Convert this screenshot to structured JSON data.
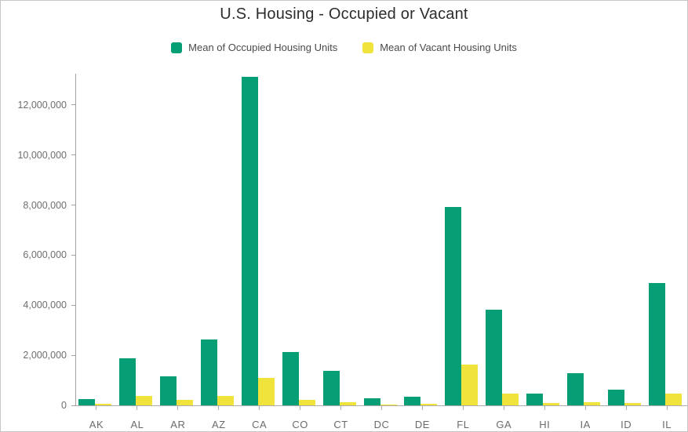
{
  "chart": {
    "title": "U.S. Housing - Occupied or Vacant"
  },
  "chart_data": {
    "type": "bar",
    "title": "U.S. Housing - Occupied or Vacant",
    "categories": [
      "AK",
      "AL",
      "AR",
      "AZ",
      "CA",
      "CO",
      "CT",
      "DC",
      "DE",
      "FL",
      "GA",
      "HI",
      "IA",
      "ID",
      "IL"
    ],
    "series": [
      {
        "name": "Mean of Occupied Housing Units",
        "color": "#069e74",
        "values": [
          250000,
          1880000,
          1170000,
          2630000,
          13120000,
          2140000,
          1370000,
          280000,
          350000,
          7940000,
          3830000,
          470000,
          1290000,
          640000,
          4890000
        ]
      },
      {
        "name": "Mean of Vacant Housing Units",
        "color": "#f0e43c",
        "values": [
          70000,
          380000,
          210000,
          390000,
          1100000,
          230000,
          140000,
          40000,
          70000,
          1620000,
          480000,
          100000,
          140000,
          90000,
          480000
        ]
      }
    ],
    "xlabel": "",
    "ylabel": "",
    "ylim": [
      0,
      13250000
    ],
    "yticks": [
      0,
      2000000,
      4000000,
      6000000,
      8000000,
      10000000,
      12000000
    ],
    "ytick_labels": [
      "0",
      "2,000,000",
      "4,000,000",
      "6,000,000",
      "8,000,000",
      "10,000,000",
      "12,000,000"
    ],
    "grid": false,
    "legend_position": "top"
  },
  "colors": {
    "axis": "#a4a4a4",
    "tick_label": "#6b6b6b",
    "title_text": "#2d2d2d",
    "legend_text": "#4a4a4a",
    "frame_border": "#c6c6c6",
    "background": "#ffffff"
  }
}
